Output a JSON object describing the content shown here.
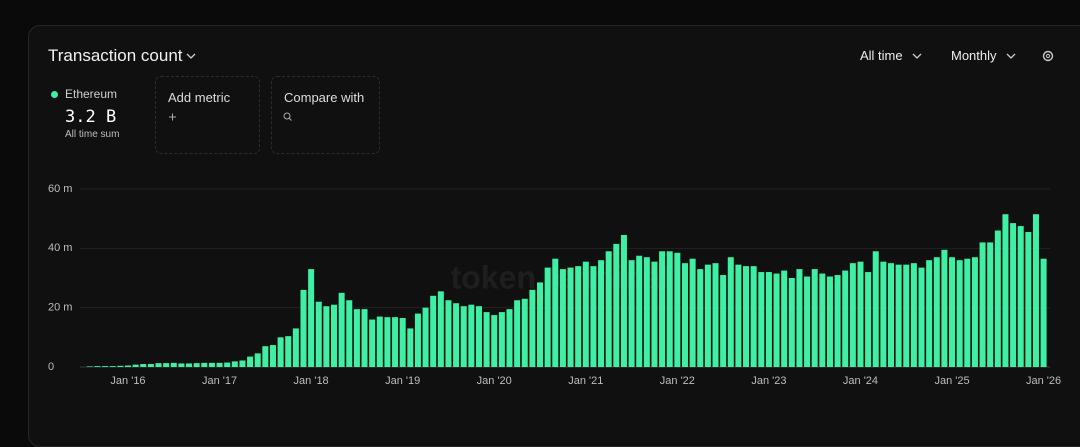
{
  "header": {
    "title": "Transaction count",
    "range": "All time",
    "interval": "Monthly"
  },
  "summary": {
    "value": "3.2 B",
    "caption": "All time sum"
  },
  "actions": {
    "add_metric": "Add metric",
    "compare": "Compare with"
  },
  "watermark": "token terminal",
  "chart_data": {
    "type": "bar",
    "categories": [
      null,
      null,
      null,
      null,
      null,
      "Jan '16",
      null,
      null,
      null,
      null,
      null,
      null,
      null,
      null,
      null,
      null,
      null,
      "Jan '17",
      null,
      null,
      null,
      null,
      null,
      null,
      null,
      null,
      null,
      null,
      null,
      "Jan '18",
      null,
      null,
      null,
      null,
      null,
      null,
      null,
      null,
      null,
      null,
      null,
      "Jan '19",
      null,
      null,
      null,
      null,
      null,
      null,
      null,
      null,
      null,
      null,
      null,
      "Jan '20",
      null,
      null,
      null,
      null,
      null,
      null,
      null,
      null,
      null,
      null,
      null,
      "Jan '21",
      null,
      null,
      null,
      null,
      null,
      null,
      null,
      null,
      null,
      null,
      null,
      "Jan '22",
      null,
      null,
      null,
      null,
      null,
      null,
      null,
      null,
      null,
      null,
      null,
      "Jan '23",
      null,
      null,
      null,
      null,
      null,
      null,
      null,
      null,
      null,
      null,
      null,
      "Jan '24",
      null,
      null,
      null,
      null,
      null,
      null,
      null,
      null,
      null,
      null,
      null,
      "Jan '25",
      null,
      null,
      null,
      null,
      null,
      null,
      null,
      null,
      null,
      null,
      null,
      "Jan '26"
    ],
    "series": [
      {
        "name": "Ethereum",
        "color": "#3ff0a4",
        "values": [
          0.2,
          0.3,
          0.3,
          0.3,
          0.4,
          0.5,
          0.8,
          1.0,
          1.0,
          1.3,
          1.3,
          1.4,
          1.2,
          1.2,
          1.3,
          1.4,
          1.4,
          1.4,
          1.5,
          1.9,
          2.2,
          3.5,
          4.6,
          7.0,
          7.4,
          10.0,
          10.4,
          13.0,
          26.0,
          33.0,
          22.0,
          20.5,
          21.0,
          25.0,
          22.5,
          19.5,
          19.5,
          16.0,
          17.0,
          16.8,
          16.8,
          16.5,
          13.0,
          18.0,
          20.0,
          24.0,
          25.5,
          22.5,
          21.5,
          20.5,
          21.0,
          20.5,
          18.5,
          17.5,
          18.5,
          19.5,
          22.5,
          23.0,
          26.0,
          28.5,
          33.5,
          36.5,
          33.0,
          33.5,
          34.0,
          35.5,
          34.0,
          36.0,
          39.0,
          41.5,
          44.5,
          36.0,
          37.5,
          37.0,
          35.5,
          39.0,
          39.0,
          38.5,
          35.0,
          36.5,
          33.0,
          34.5,
          35.0,
          31.0,
          37.0,
          34.5,
          34.0,
          34.0,
          32.0,
          32.0,
          31.5,
          32.5,
          30.0,
          33.0,
          30.5,
          33.0,
          31.5,
          30.5,
          31.0,
          32.5,
          35.0,
          35.5,
          32.0,
          39.0,
          35.5,
          35.0,
          34.5,
          34.5,
          35.0,
          33.5,
          36.0,
          37.0,
          39.5,
          37.0,
          36.0,
          36.5,
          37.0,
          42.0,
          42.0,
          46.0,
          51.5,
          48.5,
          47.5,
          45.5,
          51.5,
          36.5
        ]
      }
    ],
    "ylim": [
      0,
      60
    ],
    "yticks": [
      0,
      {
        "value": 20,
        "label": "20 m"
      },
      {
        "value": 40,
        "label": "40 m"
      },
      {
        "value": 60,
        "label": "60 m"
      }
    ],
    "grid": true
  }
}
